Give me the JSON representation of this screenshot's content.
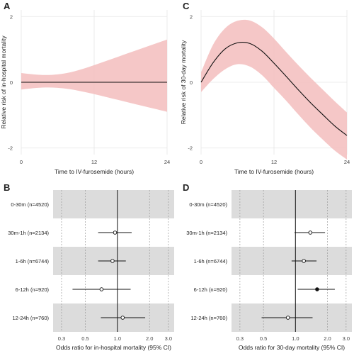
{
  "chart_data": [
    {
      "panel": "A",
      "type": "line",
      "xlabel": "Time to IV-furosemide  (hours)",
      "ylabel": "Relative risk of in-hospital mortality",
      "xlim": [
        0,
        24
      ],
      "ylim": [
        -2.2,
        2.2
      ],
      "xticks": [
        0,
        12,
        24
      ],
      "yticks": [
        2,
        0,
        -2
      ],
      "grid": true,
      "band_color": "#f4c4c4",
      "line_color": "#111111",
      "x": [
        0,
        2,
        4,
        6,
        8,
        10,
        12,
        14,
        16,
        18,
        20,
        22,
        24
      ],
      "y": [
        0,
        0,
        0,
        0,
        0,
        0,
        0,
        0,
        0,
        0,
        0,
        0,
        0
      ],
      "ci_upper": [
        0.28,
        0.24,
        0.22,
        0.24,
        0.3,
        0.4,
        0.52,
        0.65,
        0.78,
        0.91,
        1.04,
        1.17,
        1.3
      ],
      "ci_lower": [
        -0.22,
        -0.18,
        -0.16,
        -0.17,
        -0.21,
        -0.28,
        -0.36,
        -0.45,
        -0.54,
        -0.63,
        -0.72,
        -0.81,
        -0.9
      ]
    },
    {
      "panel": "C",
      "type": "line",
      "xlabel": "Time to IV-furosemide  (hours)",
      "ylabel": "Relative risk of 30-day mortality",
      "xlim": [
        0,
        24
      ],
      "ylim": [
        -2.2,
        2.2
      ],
      "xticks": [
        0,
        12,
        24
      ],
      "yticks": [
        2,
        0,
        -2
      ],
      "grid": true,
      "band_color": "#f4c4c4",
      "line_color": "#111111",
      "x": [
        0,
        2,
        4,
        6,
        8,
        10,
        12,
        14,
        16,
        18,
        20,
        22,
        24
      ],
      "y": [
        0.0,
        0.6,
        1.02,
        1.2,
        1.18,
        0.95,
        0.58,
        0.18,
        -0.23,
        -0.62,
        -0.98,
        -1.33,
        -1.62
      ],
      "ci_upper": [
        0.3,
        1.15,
        1.65,
        1.87,
        1.88,
        1.68,
        1.33,
        0.92,
        0.52,
        0.14,
        -0.22,
        -0.58,
        -0.92
      ],
      "ci_lower": [
        -0.3,
        0.1,
        0.4,
        0.55,
        0.48,
        0.22,
        -0.17,
        -0.56,
        -0.98,
        -1.38,
        -1.74,
        -2.08,
        -2.35
      ]
    },
    {
      "panel": "B",
      "type": "forest",
      "xlabel": "Odds ratio for in-hospital mortality (95% CI)",
      "xscale": "log",
      "xlim": [
        0.25,
        3.4
      ],
      "xticks": [
        0.3,
        0.5,
        1.0,
        2.0,
        3.0
      ],
      "xtick_labels": [
        "0.3",
        "0.5",
        "1.0",
        "2.0",
        "3.0"
      ],
      "reference_line": 1.0,
      "band_color": "#dcdcdc",
      "categories": [
        "0-30m (n=4520)",
        "30m-1h (n=2134)",
        "1-6h (n=6744)",
        "6-12h (n=920)",
        "12-24h (n=760)"
      ],
      "or": [
        null,
        0.95,
        0.9,
        0.71,
        1.12
      ],
      "ci_lower": [
        null,
        0.66,
        0.66,
        0.38,
        0.7
      ],
      "ci_upper": [
        null,
        1.36,
        1.2,
        1.33,
        1.82
      ],
      "significant": [
        false,
        false,
        false,
        false,
        false
      ]
    },
    {
      "panel": "D",
      "type": "forest",
      "xlabel": "Odds ratio for 30-day mortality (95% CI)",
      "xscale": "log",
      "xlim": [
        0.25,
        3.4
      ],
      "xticks": [
        0.3,
        0.5,
        1.0,
        2.0,
        3.0
      ],
      "xtick_labels": [
        "0.3",
        "0.5",
        "1.0",
        "2.0",
        "3.0"
      ],
      "reference_line": 1.0,
      "band_color": "#dcdcdc",
      "categories": [
        "0-30m (n=4520)",
        "30m-1h (n=2134)",
        "1-6h (n=6744)",
        "6-12h (n=920)",
        "12-24h (n=760)"
      ],
      "or": [
        null,
        1.38,
        1.2,
        1.6,
        0.85
      ],
      "ci_lower": [
        null,
        0.98,
        0.92,
        1.05,
        0.48
      ],
      "ci_upper": [
        null,
        1.9,
        1.58,
        2.35,
        1.45
      ],
      "significant": [
        false,
        false,
        false,
        true,
        false
      ]
    }
  ]
}
